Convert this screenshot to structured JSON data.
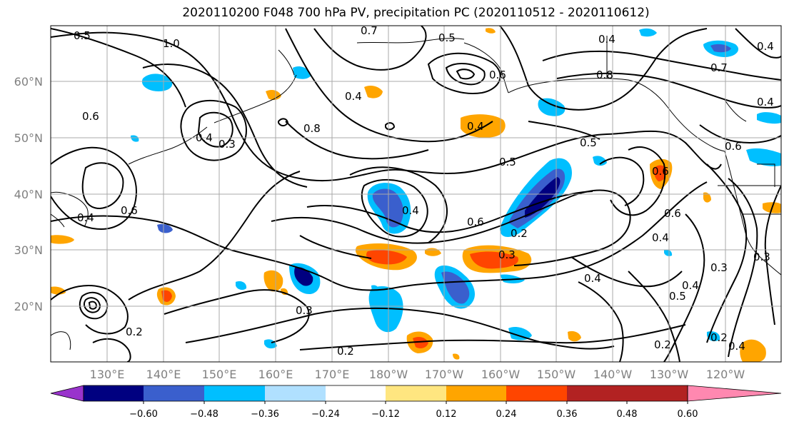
{
  "title": "2020110200 F048 700 hPa PV, precipitation PC (2020110512 - 2020110612)",
  "map": {
    "lat_labels": [
      "60°N",
      "50°N",
      "40°N",
      "30°N",
      "20°N"
    ],
    "lon_labels": [
      "130°E",
      "140°E",
      "150°E",
      "160°E",
      "170°E",
      "180°W",
      "170°W",
      "160°W",
      "150°W",
      "140°W",
      "130°W",
      "120°W"
    ],
    "contour_labels": [
      "0.5",
      "1.0",
      "0.5",
      "0.4",
      "0.4",
      "0.8",
      "0.7",
      "0.6",
      "0.6",
      "0.3",
      "0.4",
      "0.8",
      "0.4",
      "0.5",
      "0.5",
      "0.4",
      "0.6",
      "0.6",
      "0.2",
      "0.3",
      "0.4",
      "0.6",
      "0.4",
      "0.2",
      "0.3",
      "0.2",
      "0.4",
      "0.5",
      "0.3",
      "0.4",
      "0.2",
      "0.6",
      "0.2",
      "0.4",
      "0.3",
      "0.6",
      "0.4",
      "0.7",
      "0.4"
    ]
  },
  "colorbar": {
    "colors": [
      "#9933cc",
      "#000080",
      "#3a5fcd",
      "#00bfff",
      "#b0e0ff",
      "#ffffff",
      "#ffe680",
      "#ffa500",
      "#ff4500",
      "#b22222",
      "#ff88b0"
    ],
    "tick_labels": [
      "−0.60",
      "−0.48",
      "−0.36",
      "−0.24",
      "−0.12",
      "0.12",
      "0.24",
      "0.36",
      "0.48",
      "0.60"
    ]
  },
  "palette": {
    "neg_deep": "#000080",
    "neg_mid": "#3a5fcd",
    "neg_light": "#00bfff",
    "pos_light": "#ffe680",
    "pos_mid": "#ffa500",
    "pos_deep": "#ff4500",
    "grid": "#a9a9a9"
  }
}
